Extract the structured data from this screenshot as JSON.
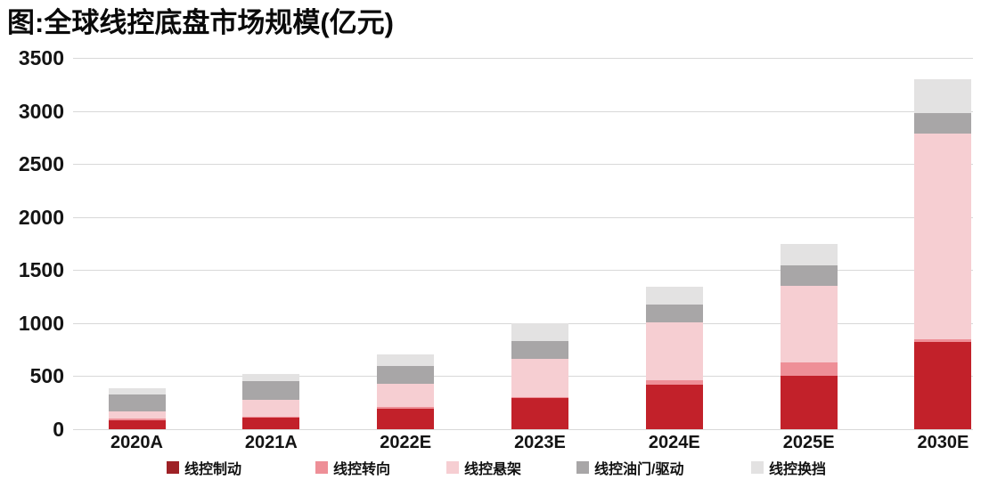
{
  "title": "图:全球线控底盘市场规模(亿元)",
  "chart_data": {
    "type": "bar",
    "stacked": true,
    "title": "图:全球线控底盘市场规模(亿元)",
    "xlabel": "",
    "ylabel": "",
    "unit": "亿元",
    "categories": [
      "2020A",
      "2021A",
      "2022E",
      "2023E",
      "2024E",
      "2025E",
      "2030E"
    ],
    "series": [
      {
        "name": "线控制动",
        "color": "#c2212a",
        "legend_color": "#9e2126",
        "values": [
          85,
          105,
          195,
          290,
          420,
          500,
          820
        ]
      },
      {
        "name": "线控转向",
        "color": "#ee8f97",
        "legend_color": "#ee8f97",
        "values": [
          15,
          15,
          15,
          15,
          40,
          130,
          30
        ]
      },
      {
        "name": "线控悬架",
        "color": "#f6ced2",
        "legend_color": "#f6ced2",
        "values": [
          65,
          155,
          220,
          360,
          545,
          720,
          1940
        ]
      },
      {
        "name": "线控油门/驱动",
        "color": "#a8a6a7",
        "legend_color": "#a8a6a7",
        "values": [
          160,
          180,
          165,
          170,
          170,
          195,
          190
        ]
      },
      {
        "name": "线控换挡",
        "color": "#e3e2e2",
        "legend_color": "#e3e2e2",
        "values": [
          60,
          65,
          110,
          165,
          165,
          205,
          320
        ]
      }
    ],
    "totals": [
      385,
      520,
      705,
      1000,
      1340,
      1750,
      3300
    ],
    "ylim": [
      0,
      3500
    ],
    "ytick_interval": 500,
    "yticks": [
      "0",
      "500",
      "1000",
      "1500",
      "2000",
      "2500",
      "3000",
      "3500"
    ],
    "grid": true,
    "legend_position": "bottom",
    "text_color": "#141414",
    "gridline_color": "#d8d8d8"
  }
}
